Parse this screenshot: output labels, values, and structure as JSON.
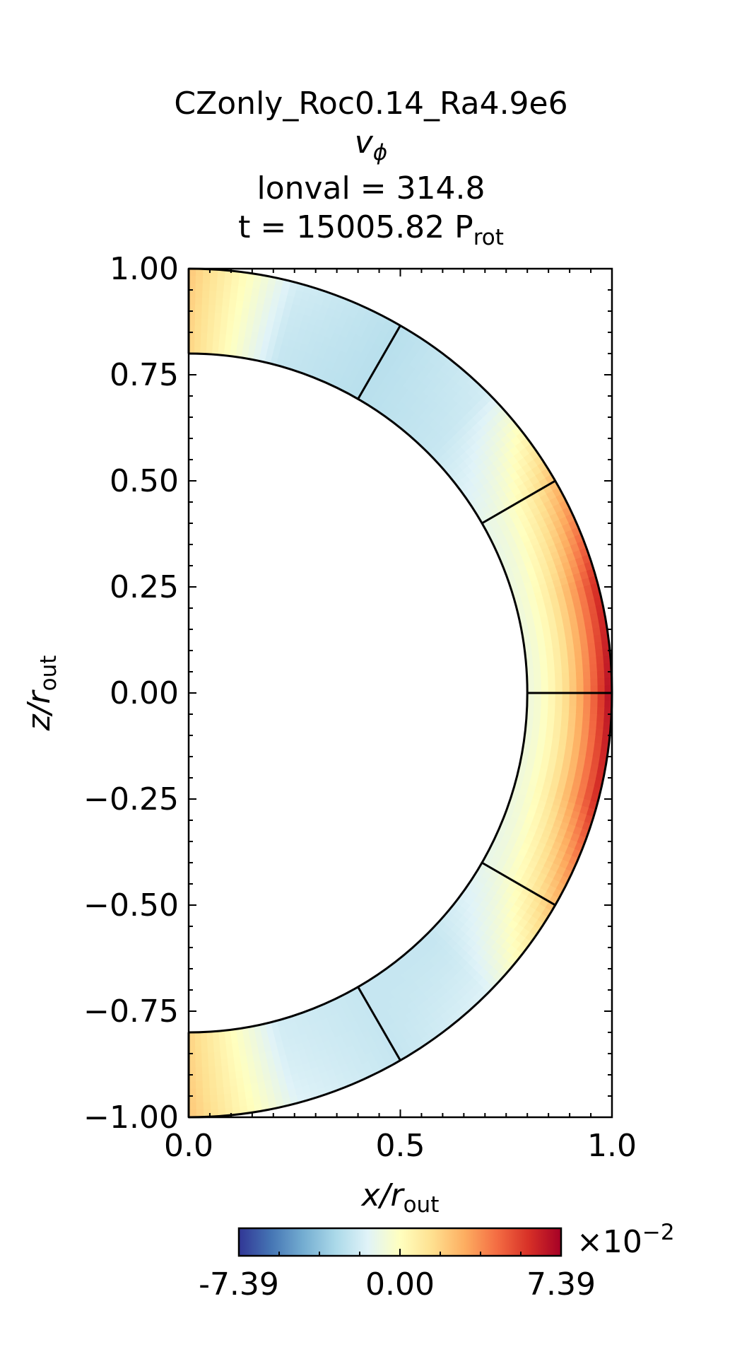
{
  "chart_data": {
    "type": "heatmap",
    "projection": "meridional-slice",
    "title_lines": [
      "CZonly_Roc0.14_Ra4.9e6",
      "lonval = 314.8",
      "t = 15005.82 P"
    ],
    "variable": {
      "base": "v",
      "sub": "ϕ"
    },
    "time_unit_sub": "rot",
    "xlabel": {
      "base": "x/r",
      "sub": "out"
    },
    "ylabel": {
      "base": "z/r",
      "sub": "out"
    },
    "xlim": [
      0,
      1
    ],
    "ylim": [
      -1,
      1
    ],
    "xticks": [
      0.0,
      0.5,
      1.0
    ],
    "xticklabels": [
      "0.0",
      "0.5",
      "1.0"
    ],
    "yticks": [
      1.0,
      0.75,
      0.5,
      0.25,
      0.0,
      -0.25,
      -0.5,
      -0.75,
      -1.0
    ],
    "yticklabels": [
      "1.00",
      "0.75",
      "0.50",
      "0.25",
      "0.00",
      "−0.25",
      "−0.50",
      "−0.75",
      "−1.00"
    ],
    "inner_radius": 0.8,
    "outer_radius": 1.0,
    "boundary_latitudes_deg": [
      60,
      30,
      0,
      -30,
      -60
    ],
    "colorbar": {
      "colormap": "RdYlBu_r",
      "vmin": -7.39,
      "vmax": 7.39,
      "ticklabels": [
        "-7.39",
        "0.00",
        "7.39"
      ],
      "multiplier_base": "×10",
      "multiplier_exp": "−2"
    },
    "field_profile": {
      "description_lat_deg": [
        90,
        75,
        60,
        45,
        30,
        15,
        0,
        -15,
        -30,
        -45,
        -60,
        -75,
        -90
      ],
      "value_at_outer": [
        0.3,
        -0.25,
        -0.35,
        -0.25,
        0.35,
        0.85,
        0.98,
        0.85,
        0.35,
        -0.2,
        -0.3,
        -0.2,
        0.3
      ],
      "value_at_inner": [
        0.25,
        -0.3,
        -0.35,
        -0.3,
        -0.15,
        -0.1,
        -0.1,
        -0.1,
        -0.15,
        -0.3,
        -0.3,
        -0.25,
        0.25
      ],
      "units_note": "normalized to colorbar range"
    }
  }
}
